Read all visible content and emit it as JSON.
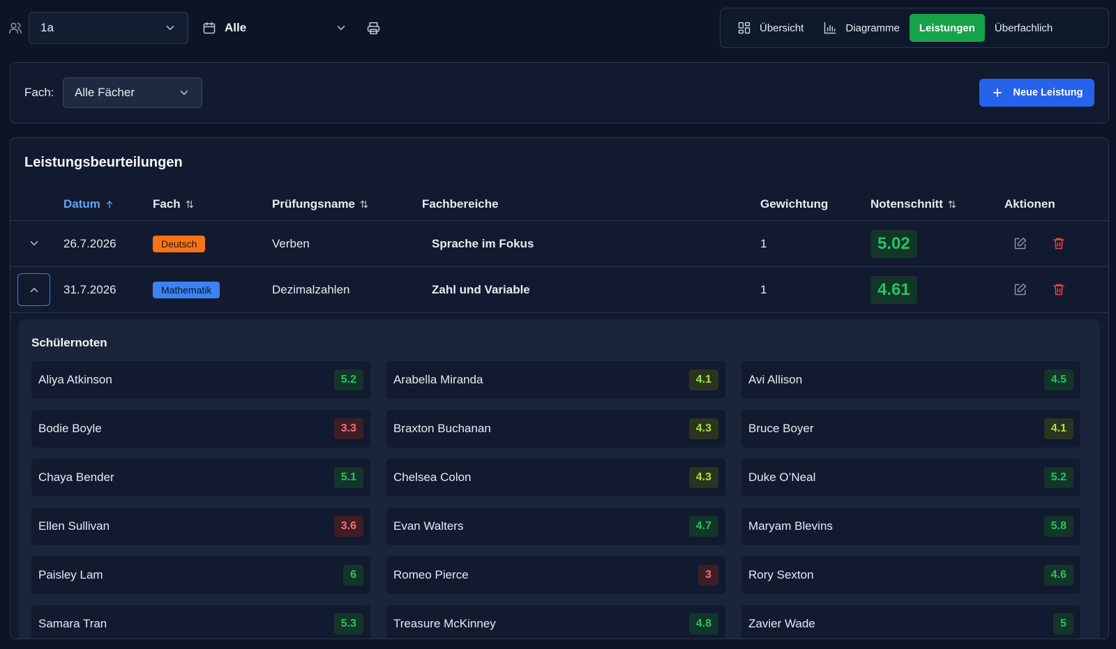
{
  "toolbar": {
    "class_value": "1a",
    "period_value": "Alle",
    "tabs": [
      {
        "label": "Übersicht",
        "icon": "grid-icon",
        "active": false
      },
      {
        "label": "Diagramme",
        "icon": "bar-chart-icon",
        "active": false
      },
      {
        "label": "Leistungen",
        "icon": "",
        "active": true
      },
      {
        "label": "Überfachlich",
        "icon": "",
        "active": false
      }
    ]
  },
  "filter": {
    "label": "Fach:",
    "value": "Alle Fächer",
    "new_button": "Neue Leistung"
  },
  "table": {
    "title": "Leistungsbeurteilungen",
    "headers": {
      "date": "Datum",
      "subject": "Fach",
      "exam": "Prüfungsname",
      "areas": "Fachbereiche",
      "weight": "Gewichtung",
      "average": "Notenschnitt",
      "actions": "Aktionen"
    },
    "rows": [
      {
        "date": "26.7.2026",
        "subject": "Deutsch",
        "exam": "Verben",
        "area": "Sprache im Fokus",
        "weight": "1",
        "average": "5.02",
        "expanded": false
      },
      {
        "date": "31.7.2026",
        "subject": "Mathematik",
        "exam": "Dezimalzahlen",
        "area": "Zahl und Variable",
        "weight": "1",
        "average": "4.61",
        "expanded": true
      }
    ]
  },
  "grades": {
    "title": "Schülernoten",
    "students": [
      {
        "name": "Aliya Atkinson",
        "grade": "5.2"
      },
      {
        "name": "Arabella Miranda",
        "grade": "4.1"
      },
      {
        "name": "Avi Allison",
        "grade": "4.5"
      },
      {
        "name": "Bodie Boyle",
        "grade": "3.3"
      },
      {
        "name": "Braxton Buchanan",
        "grade": "4.3"
      },
      {
        "name": "Bruce Boyer",
        "grade": "4.1"
      },
      {
        "name": "Chaya Bender",
        "grade": "5.1"
      },
      {
        "name": "Chelsea Colon",
        "grade": "4.3"
      },
      {
        "name": "Duke O’Neal",
        "grade": "5.2"
      },
      {
        "name": "Ellen Sullivan",
        "grade": "3.6"
      },
      {
        "name": "Evan Walters",
        "grade": "4.7"
      },
      {
        "name": "Maryam Blevins",
        "grade": "5.8"
      },
      {
        "name": "Paisley Lam",
        "grade": "6"
      },
      {
        "name": "Romeo Pierce",
        "grade": "3"
      },
      {
        "name": "Rory Sexton",
        "grade": "4.6"
      },
      {
        "name": "Samara Tran",
        "grade": "5.3"
      },
      {
        "name": "Treasure McKinney",
        "grade": "4.8"
      },
      {
        "name": "Zavier Wade",
        "grade": "5"
      }
    ]
  },
  "colors": {
    "background": "#0c1426",
    "active_tab": "#16a34a",
    "primary_button": "#2563eb",
    "deutsch_badge": "#f97316",
    "math_badge": "#3b82f6",
    "grade_good": "#22c55e",
    "grade_ok": "#a3e635",
    "grade_bad": "#f87171"
  }
}
